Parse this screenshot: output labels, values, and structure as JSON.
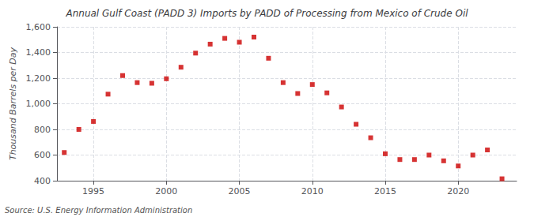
{
  "chart_data": {
    "type": "scatter",
    "title": "Annual Gulf Coast (PADD 3) Imports by PADD of Processing from Mexico of Crude Oil",
    "ylabel": "Thousand Barrels per Day",
    "annotation": "Source: U.S. Energy Information Administration",
    "color": "#cc0000",
    "marker": "square",
    "grid": true,
    "x": [
      1993,
      1994,
      1995,
      1996,
      1997,
      1998,
      1999,
      2000,
      2001,
      2002,
      2003,
      2004,
      2005,
      2006,
      2007,
      2008,
      2009,
      2010,
      2011,
      2012,
      2013,
      2014,
      2015,
      2016,
      2017,
      2018,
      2019,
      2020,
      2021,
      2022,
      2023
    ],
    "values": [
      620,
      800,
      862,
      1075,
      1220,
      1165,
      1160,
      1195,
      1285,
      1395,
      1465,
      1510,
      1480,
      1520,
      1355,
      1165,
      1080,
      1150,
      1085,
      975,
      840,
      735,
      610,
      565,
      565,
      600,
      555,
      515,
      600,
      640,
      415
    ],
    "xlim": [
      1992.5,
      2024
    ],
    "xticks": [
      1995,
      2000,
      2005,
      2010,
      2015,
      2020
    ],
    "ylim": [
      400,
      1600
    ],
    "yticks": [
      400,
      600,
      800,
      {
        "value": 1000,
        "label": "1,000"
      },
      {
        "value": 1200,
        "label": "1,200"
      },
      {
        "value": 1400,
        "label": "1,400"
      },
      {
        "value": 1600,
        "label": "1,600"
      }
    ]
  }
}
